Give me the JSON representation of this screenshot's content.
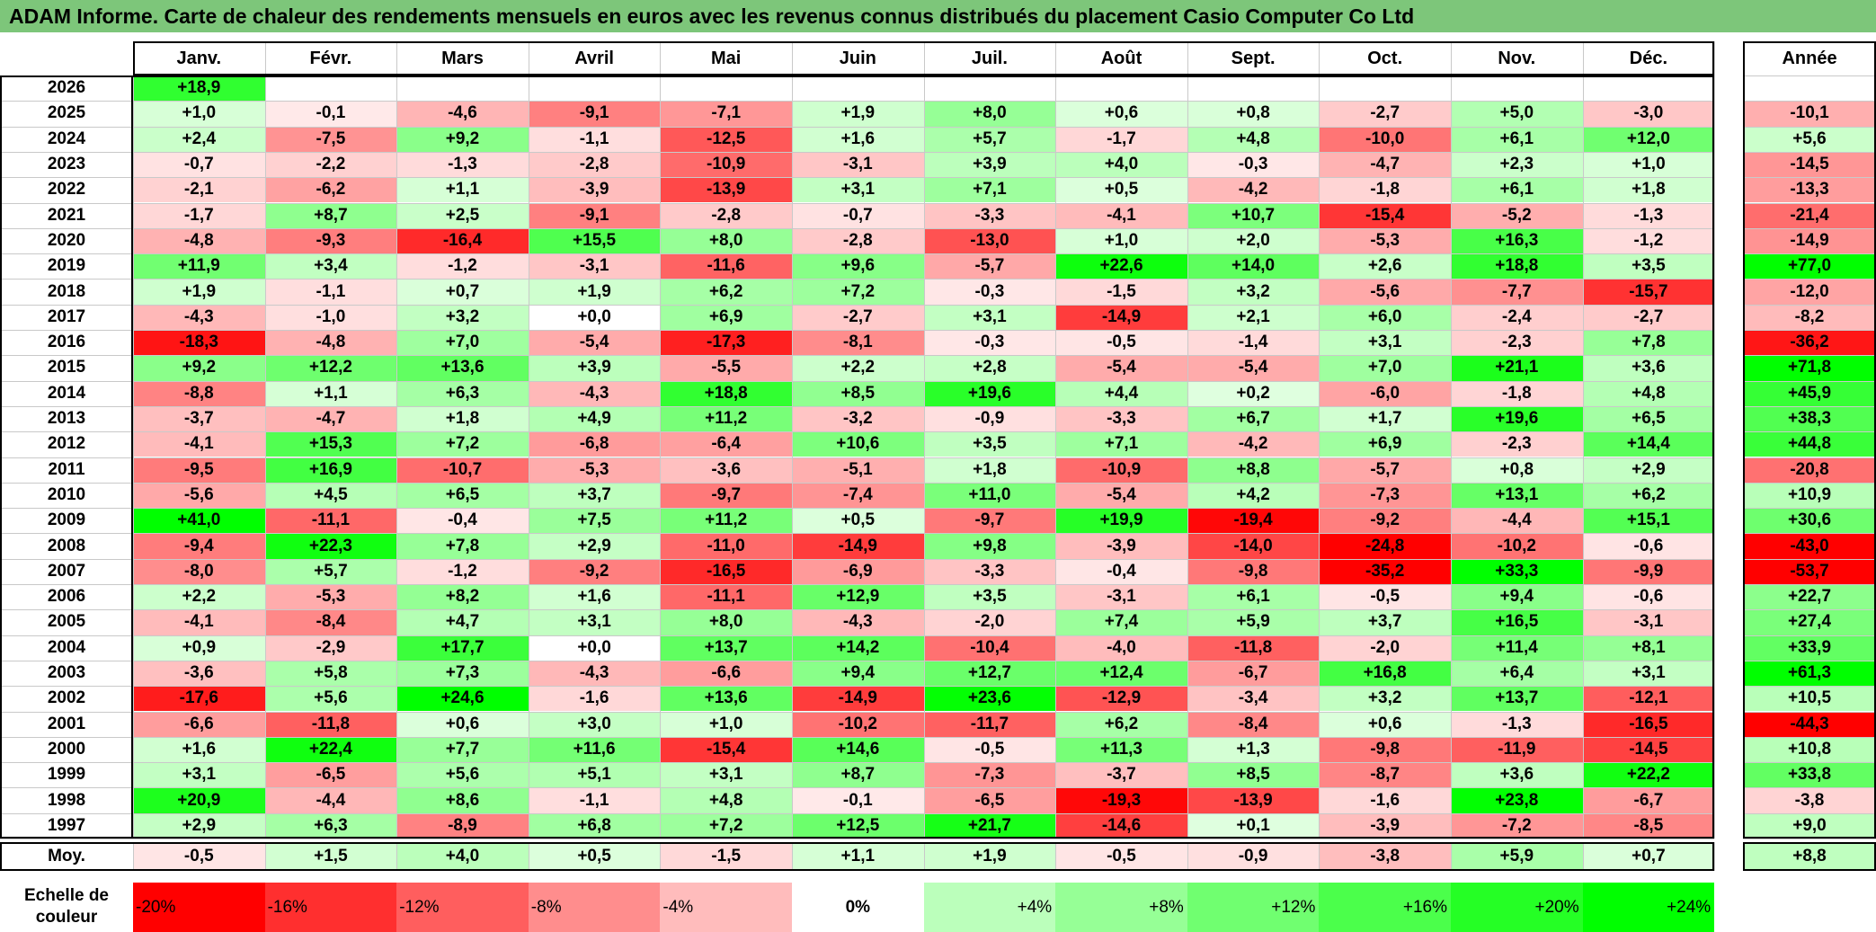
{
  "title": "ADAM Informe. Carte de chaleur des rendements mensuels en euros avec les revenus connus distribués du placement Casio Computer Co Ltd",
  "chart_data": {
    "type": "heatmap",
    "months": [
      "Janv.",
      "Févr.",
      "Mars",
      "Avril",
      "Mai",
      "Juin",
      "Juil.",
      "Août",
      "Sept.",
      "Oct.",
      "Nov.",
      "Déc."
    ],
    "year_header": "Année",
    "avg_label": "Moy.",
    "rows": [
      {
        "year": "2026",
        "values": [
          "+18,9",
          "",
          "",
          "",
          "",
          "",
          "",
          "",
          "",
          "",
          "",
          ""
        ],
        "annual": ""
      },
      {
        "year": "2025",
        "values": [
          "+1,0",
          "-0,1",
          "-4,6",
          "-9,1",
          "-7,1",
          "+1,9",
          "+8,0",
          "+0,6",
          "+0,8",
          "-2,7",
          "+5,0",
          "-3,0"
        ],
        "annual": "-10,1"
      },
      {
        "year": "2024",
        "values": [
          "+2,4",
          "-7,5",
          "+9,2",
          "-1,1",
          "-12,5",
          "+1,6",
          "+5,7",
          "-1,7",
          "+4,8",
          "-10,0",
          "+6,1",
          "+12,0"
        ],
        "annual": "+5,6"
      },
      {
        "year": "2023",
        "values": [
          "-0,7",
          "-2,2",
          "-1,3",
          "-2,8",
          "-10,9",
          "-3,1",
          "+3,9",
          "+4,0",
          "-0,3",
          "-4,7",
          "+2,3",
          "+1,0"
        ],
        "annual": "-14,5"
      },
      {
        "year": "2022",
        "values": [
          "-2,1",
          "-6,2",
          "+1,1",
          "-3,9",
          "-13,9",
          "+3,1",
          "+7,1",
          "+0,5",
          "-4,2",
          "-1,8",
          "+6,1",
          "+1,8"
        ],
        "annual": "-13,3"
      },
      {
        "year": "2021",
        "values": [
          "-1,7",
          "+8,7",
          "+2,5",
          "-9,1",
          "-2,8",
          "-0,7",
          "-3,3",
          "-4,1",
          "+10,7",
          "-15,4",
          "-5,2",
          "-1,3"
        ],
        "annual": "-21,4"
      },
      {
        "year": "2020",
        "values": [
          "-4,8",
          "-9,3",
          "-16,4",
          "+15,5",
          "+8,0",
          "-2,8",
          "-13,0",
          "+1,0",
          "+2,0",
          "-5,3",
          "+16,3",
          "-1,2"
        ],
        "annual": "-14,9"
      },
      {
        "year": "2019",
        "values": [
          "+11,9",
          "+3,4",
          "-1,2",
          "-3,1",
          "-11,6",
          "+9,6",
          "-5,7",
          "+22,6",
          "+14,0",
          "+2,6",
          "+18,8",
          "+3,5"
        ],
        "annual": "+77,0"
      },
      {
        "year": "2018",
        "values": [
          "+1,9",
          "-1,1",
          "+0,7",
          "+1,9",
          "+6,2",
          "+7,2",
          "-0,3",
          "-1,5",
          "+3,2",
          "-5,6",
          "-7,7",
          "-15,7"
        ],
        "annual": "-12,0"
      },
      {
        "year": "2017",
        "values": [
          "-4,3",
          "-1,0",
          "+3,2",
          "+0,0",
          "+6,9",
          "-2,7",
          "+3,1",
          "-14,9",
          "+2,1",
          "+6,0",
          "-2,4",
          "-2,7"
        ],
        "annual": "-8,2"
      },
      {
        "year": "2016",
        "values": [
          "-18,3",
          "-4,8",
          "+7,0",
          "-5,4",
          "-17,3",
          "-8,1",
          "-0,3",
          "-0,5",
          "-1,4",
          "+3,1",
          "-2,3",
          "+7,8"
        ],
        "annual": "-36,2"
      },
      {
        "year": "2015",
        "values": [
          "+9,2",
          "+12,2",
          "+13,6",
          "+3,9",
          "-5,5",
          "+2,2",
          "+2,8",
          "-5,4",
          "-5,4",
          "+7,0",
          "+21,1",
          "+3,6"
        ],
        "annual": "+71,8"
      },
      {
        "year": "2014",
        "values": [
          "-8,8",
          "+1,1",
          "+6,3",
          "-4,3",
          "+18,8",
          "+8,5",
          "+19,6",
          "+4,4",
          "+0,2",
          "-6,0",
          "-1,8",
          "+4,8"
        ],
        "annual": "+45,9"
      },
      {
        "year": "2013",
        "values": [
          "-3,7",
          "-4,7",
          "+1,8",
          "+4,9",
          "+11,2",
          "-3,2",
          "-0,9",
          "-3,3",
          "+6,7",
          "+1,7",
          "+19,6",
          "+6,5"
        ],
        "annual": "+38,3"
      },
      {
        "year": "2012",
        "values": [
          "-4,1",
          "+15,3",
          "+7,2",
          "-6,8",
          "-6,4",
          "+10,6",
          "+3,5",
          "+7,1",
          "-4,2",
          "+6,9",
          "-2,3",
          "+14,4"
        ],
        "annual": "+44,8"
      },
      {
        "year": "2011",
        "values": [
          "-9,5",
          "+16,9",
          "-10,7",
          "-5,3",
          "-3,6",
          "-5,1",
          "+1,8",
          "-10,9",
          "+8,8",
          "-5,7",
          "+0,8",
          "+2,9"
        ],
        "annual": "-20,8"
      },
      {
        "year": "2010",
        "values": [
          "-5,6",
          "+4,5",
          "+6,5",
          "+3,7",
          "-9,7",
          "-7,4",
          "+11,0",
          "-5,4",
          "+4,2",
          "-7,3",
          "+13,1",
          "+6,2"
        ],
        "annual": "+10,9"
      },
      {
        "year": "2009",
        "values": [
          "+41,0",
          "-11,1",
          "-0,4",
          "+7,5",
          "+11,2",
          "+0,5",
          "-9,7",
          "+19,9",
          "-19,4",
          "-9,2",
          "-4,4",
          "+15,1"
        ],
        "annual": "+30,6"
      },
      {
        "year": "2008",
        "values": [
          "-9,4",
          "+22,3",
          "+7,8",
          "+2,9",
          "-11,0",
          "-14,9",
          "+9,8",
          "-3,9",
          "-14,0",
          "-24,8",
          "-10,2",
          "-0,6"
        ],
        "annual": "-43,0"
      },
      {
        "year": "2007",
        "values": [
          "-8,0",
          "+5,7",
          "-1,2",
          "-9,2",
          "-16,5",
          "-6,9",
          "-3,3",
          "-0,4",
          "-9,8",
          "-35,2",
          "+33,3",
          "-9,9"
        ],
        "annual": "-53,7"
      },
      {
        "year": "2006",
        "values": [
          "+2,2",
          "-5,3",
          "+8,2",
          "+1,6",
          "-11,1",
          "+12,9",
          "+3,5",
          "-3,1",
          "+6,1",
          "-0,5",
          "+9,4",
          "-0,6"
        ],
        "annual": "+22,7"
      },
      {
        "year": "2005",
        "values": [
          "-4,1",
          "-8,4",
          "+4,7",
          "+3,1",
          "+8,0",
          "-4,3",
          "-2,0",
          "+7,4",
          "+5,9",
          "+3,7",
          "+16,5",
          "-3,1"
        ],
        "annual": "+27,4"
      },
      {
        "year": "2004",
        "values": [
          "+0,9",
          "-2,9",
          "+17,7",
          "+0,0",
          "+13,7",
          "+14,2",
          "-10,4",
          "-4,0",
          "-11,8",
          "-2,0",
          "+11,4",
          "+8,1"
        ],
        "annual": "+33,9"
      },
      {
        "year": "2003",
        "values": [
          "-3,6",
          "+5,8",
          "+7,3",
          "-4,3",
          "-6,6",
          "+9,4",
          "+12,7",
          "+12,4",
          "-6,7",
          "+16,8",
          "+6,4",
          "+3,1"
        ],
        "annual": "+61,3"
      },
      {
        "year": "2002",
        "values": [
          "-17,6",
          "+5,6",
          "+24,6",
          "-1,6",
          "+13,6",
          "-14,9",
          "+23,6",
          "-12,9",
          "-3,4",
          "+3,2",
          "+13,7",
          "-12,1"
        ],
        "annual": "+10,5"
      },
      {
        "year": "2001",
        "values": [
          "-6,6",
          "-11,8",
          "+0,6",
          "+3,0",
          "+1,0",
          "-10,2",
          "-11,7",
          "+6,2",
          "-8,4",
          "+0,6",
          "-1,3",
          "-16,5"
        ],
        "annual": "-44,3"
      },
      {
        "year": "2000",
        "values": [
          "+1,6",
          "+22,4",
          "+7,7",
          "+11,6",
          "-15,4",
          "+14,6",
          "-0,5",
          "+11,3",
          "+1,3",
          "-9,8",
          "-11,9",
          "-14,5"
        ],
        "annual": "+10,8"
      },
      {
        "year": "1999",
        "values": [
          "+3,1",
          "-6,5",
          "+5,6",
          "+5,1",
          "+3,1",
          "+8,7",
          "-7,3",
          "-3,7",
          "+8,5",
          "-8,7",
          "+3,6",
          "+22,2"
        ],
        "annual": "+33,8"
      },
      {
        "year": "1998",
        "values": [
          "+20,9",
          "-4,4",
          "+8,6",
          "-1,1",
          "+4,8",
          "-0,1",
          "-6,5",
          "-19,3",
          "-13,9",
          "-1,6",
          "+23,8",
          "-6,7"
        ],
        "annual": "-3,8"
      },
      {
        "year": "1997",
        "values": [
          "+2,9",
          "+6,3",
          "-8,9",
          "+6,8",
          "+7,2",
          "+12,5",
          "+21,7",
          "-14,6",
          "+0,1",
          "-3,9",
          "-7,2",
          "-8,5"
        ],
        "annual": "+9,0"
      }
    ],
    "averages": [
      "-0,5",
      "+1,5",
      "+4,0",
      "+0,5",
      "-1,5",
      "+1,1",
      "+1,9",
      "-0,5",
      "-0,9",
      "-3,8",
      "+5,9",
      "+0,7"
    ],
    "average_annual": "+8,8",
    "color_scale": {
      "label": "Echelle de couleur",
      "stops": [
        "-20%",
        "-16%",
        "-12%",
        "-8%",
        "-4%",
        "0%",
        "+4%",
        "+8%",
        "+12%",
        "+16%",
        "+20%",
        "+24%"
      ]
    },
    "colors": {
      "negative": "#ff0000",
      "zero": "#ffffff",
      "positive": "#00ff00"
    }
  }
}
